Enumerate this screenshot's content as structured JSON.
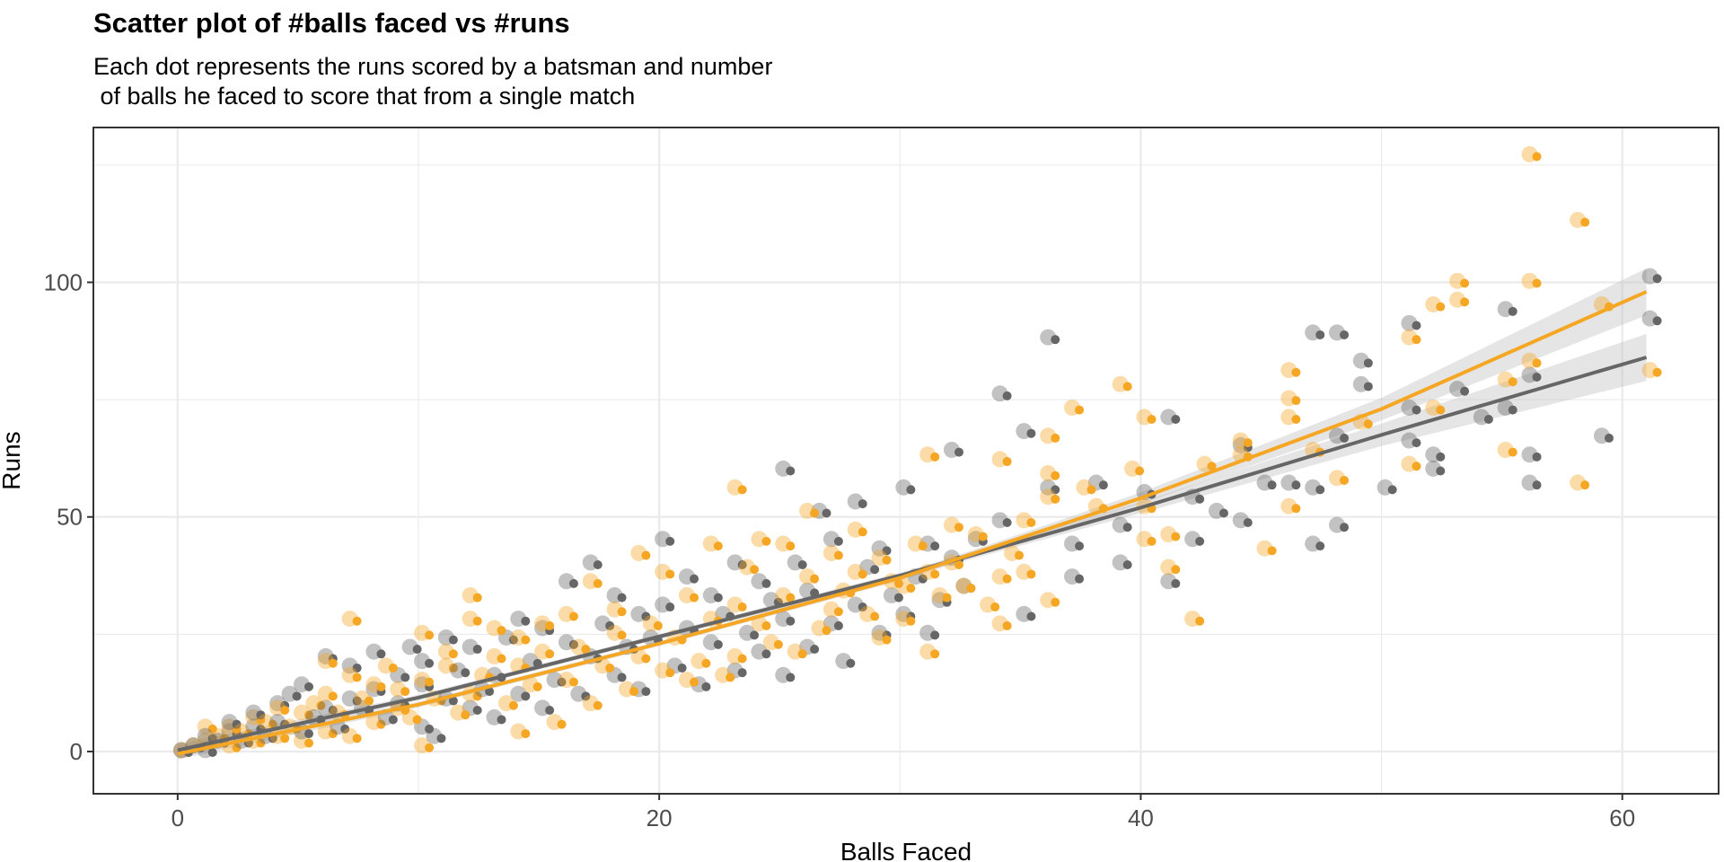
{
  "chart_data": {
    "type": "scatter",
    "title": "Scatter plot of #balls faced vs #runs",
    "subtitle": "Each dot represents the runs scored by a batsman and number\n of balls he faced to score that from a single match",
    "xlabel": "Balls Faced",
    "ylabel": "Runs",
    "xlim": [
      -3.5,
      64
    ],
    "ylim": [
      -9,
      133
    ],
    "x_ticks": [
      0,
      20,
      40,
      60
    ],
    "x_tick_labels": [
      "0",
      "20",
      "40",
      "60"
    ],
    "y_ticks": [
      0,
      50,
      100
    ],
    "y_tick_labels": [
      "0",
      "50",
      "100"
    ],
    "grid": true,
    "legend": "none",
    "colors": {
      "orange": "#F5A623",
      "gray": "#666666",
      "band": "#BEBEBE",
      "grid": "#EBEBEB",
      "frame": "#333333"
    },
    "series": [
      {
        "color_key": "orange",
        "points": [
          [
            0,
            0
          ],
          [
            0.5,
            1
          ],
          [
            1,
            2
          ],
          [
            1,
            5
          ],
          [
            1.5,
            3
          ],
          [
            2,
            1
          ],
          [
            2,
            5
          ],
          [
            2.5,
            4
          ],
          [
            3,
            2
          ],
          [
            3,
            7
          ],
          [
            3.5,
            6
          ],
          [
            4,
            3
          ],
          [
            4,
            9
          ],
          [
            4.5,
            5
          ],
          [
            5,
            2
          ],
          [
            5,
            8
          ],
          [
            5.5,
            10
          ],
          [
            6,
            4
          ],
          [
            6,
            12
          ],
          [
            6,
            19
          ],
          [
            6.5,
            8
          ],
          [
            7,
            3
          ],
          [
            7,
            16
          ],
          [
            7,
            28
          ],
          [
            7.5,
            11
          ],
          [
            8,
            6
          ],
          [
            8,
            14
          ],
          [
            8.5,
            18
          ],
          [
            9,
            9
          ],
          [
            9,
            13
          ],
          [
            9.5,
            7
          ],
          [
            10,
            1
          ],
          [
            10,
            15
          ],
          [
            10,
            25
          ],
          [
            10.5,
            11
          ],
          [
            11,
            18
          ],
          [
            11,
            21
          ],
          [
            11.5,
            8
          ],
          [
            12,
            12
          ],
          [
            12,
            28
          ],
          [
            12,
            33
          ],
          [
            12.5,
            16
          ],
          [
            13,
            20
          ],
          [
            13,
            26
          ],
          [
            13.5,
            10
          ],
          [
            14,
            4
          ],
          [
            14,
            18
          ],
          [
            14,
            24
          ],
          [
            14.5,
            14
          ],
          [
            15,
            21
          ],
          [
            15,
            27
          ],
          [
            15.5,
            6
          ],
          [
            16,
            15
          ],
          [
            16,
            29
          ],
          [
            16.5,
            22
          ],
          [
            17,
            10
          ],
          [
            17,
            36
          ],
          [
            17.5,
            18
          ],
          [
            18,
            25
          ],
          [
            18,
            30
          ],
          [
            18.5,
            13
          ],
          [
            19,
            42
          ],
          [
            19,
            20
          ],
          [
            19.5,
            27
          ],
          [
            20,
            17
          ],
          [
            20,
            38
          ],
          [
            20.5,
            24
          ],
          [
            21,
            15
          ],
          [
            21,
            33
          ],
          [
            21.5,
            19
          ],
          [
            22,
            28
          ],
          [
            22,
            44
          ],
          [
            22.5,
            16
          ],
          [
            23,
            20
          ],
          [
            23,
            31
          ],
          [
            23,
            56
          ],
          [
            23.5,
            39
          ],
          [
            24,
            27
          ],
          [
            24,
            45
          ],
          [
            24.5,
            23
          ],
          [
            25,
            33
          ],
          [
            25,
            44
          ],
          [
            25.5,
            21
          ],
          [
            26,
            37
          ],
          [
            26,
            51
          ],
          [
            26.5,
            26
          ],
          [
            27,
            42
          ],
          [
            27,
            30
          ],
          [
            27.5,
            34
          ],
          [
            28,
            38
          ],
          [
            28,
            47
          ],
          [
            28.5,
            29
          ],
          [
            29,
            24
          ],
          [
            29,
            41
          ],
          [
            29.5,
            36
          ],
          [
            30,
            28
          ],
          [
            30,
            35
          ],
          [
            30.5,
            44
          ],
          [
            31,
            21
          ],
          [
            31,
            38
          ],
          [
            31,
            63
          ],
          [
            31.5,
            33
          ],
          [
            32,
            40
          ],
          [
            32,
            48
          ],
          [
            32.5,
            35
          ],
          [
            33,
            46
          ],
          [
            33.5,
            31
          ],
          [
            34,
            37
          ],
          [
            34,
            27
          ],
          [
            34,
            62
          ],
          [
            34.5,
            42
          ],
          [
            35,
            49
          ],
          [
            35,
            38
          ],
          [
            36,
            32
          ],
          [
            36,
            54
          ],
          [
            36,
            67
          ],
          [
            36,
            59
          ],
          [
            37,
            73
          ],
          [
            37.5,
            56
          ],
          [
            38,
            52
          ],
          [
            39,
            78
          ],
          [
            39.5,
            60
          ],
          [
            40,
            71
          ],
          [
            40,
            45
          ],
          [
            40,
            52
          ],
          [
            41,
            46
          ],
          [
            41,
            39
          ],
          [
            42,
            28
          ],
          [
            42.5,
            61
          ],
          [
            44,
            66
          ],
          [
            44,
            63
          ],
          [
            45,
            43
          ],
          [
            46,
            81
          ],
          [
            46,
            75
          ],
          [
            46,
            71
          ],
          [
            46,
            52
          ],
          [
            47,
            64
          ],
          [
            48,
            58
          ],
          [
            49,
            70
          ],
          [
            51,
            88
          ],
          [
            51,
            61
          ],
          [
            52,
            95
          ],
          [
            52,
            73
          ],
          [
            53,
            100
          ],
          [
            53,
            96
          ],
          [
            55,
            79
          ],
          [
            55,
            64
          ],
          [
            56,
            127
          ],
          [
            56,
            100
          ],
          [
            56,
            83
          ],
          [
            58,
            113
          ],
          [
            58,
            57
          ],
          [
            59,
            95
          ],
          [
            61,
            81
          ]
        ]
      },
      {
        "color_key": "gray",
        "points": [
          [
            0,
            0
          ],
          [
            0.5,
            1
          ],
          [
            1,
            0
          ],
          [
            1,
            3
          ],
          [
            1.5,
            2
          ],
          [
            2,
            4
          ],
          [
            2,
            6
          ],
          [
            2.5,
            2
          ],
          [
            3,
            5
          ],
          [
            3,
            8
          ],
          [
            3.5,
            3
          ],
          [
            4,
            10
          ],
          [
            4,
            6
          ],
          [
            4.5,
            12
          ],
          [
            5,
            4
          ],
          [
            5,
            14
          ],
          [
            5.5,
            7
          ],
          [
            6,
            9
          ],
          [
            6,
            20
          ],
          [
            6.5,
            5
          ],
          [
            7,
            11
          ],
          [
            7,
            18
          ],
          [
            7.5,
            9
          ],
          [
            8,
            13
          ],
          [
            8,
            21
          ],
          [
            8.5,
            7
          ],
          [
            9,
            16
          ],
          [
            9,
            10
          ],
          [
            9.5,
            22
          ],
          [
            10,
            5
          ],
          [
            10,
            14
          ],
          [
            10,
            19
          ],
          [
            10.5,
            3
          ],
          [
            11,
            24
          ],
          [
            11,
            11
          ],
          [
            11.5,
            17
          ],
          [
            12,
            9
          ],
          [
            12,
            22
          ],
          [
            12.5,
            13
          ],
          [
            13,
            16
          ],
          [
            13,
            7
          ],
          [
            13.5,
            24
          ],
          [
            14,
            12
          ],
          [
            14,
            28
          ],
          [
            14.5,
            19
          ],
          [
            15,
            9
          ],
          [
            15,
            26
          ],
          [
            15.5,
            15
          ],
          [
            16,
            23
          ],
          [
            16,
            36
          ],
          [
            16.5,
            12
          ],
          [
            17,
            20
          ],
          [
            17,
            40
          ],
          [
            17.5,
            27
          ],
          [
            18,
            16
          ],
          [
            18,
            33
          ],
          [
            18.5,
            22
          ],
          [
            19,
            13
          ],
          [
            19,
            29
          ],
          [
            19.5,
            24
          ],
          [
            20,
            31
          ],
          [
            20,
            45
          ],
          [
            20.5,
            18
          ],
          [
            21,
            26
          ],
          [
            21,
            37
          ],
          [
            21.5,
            14
          ],
          [
            22,
            33
          ],
          [
            22,
            23
          ],
          [
            22.5,
            29
          ],
          [
            23,
            17
          ],
          [
            23,
            40
          ],
          [
            23.5,
            25
          ],
          [
            24,
            21
          ],
          [
            24,
            36
          ],
          [
            24.5,
            32
          ],
          [
            25,
            16
          ],
          [
            25,
            28
          ],
          [
            25,
            60
          ],
          [
            25.5,
            40
          ],
          [
            26,
            22
          ],
          [
            26,
            34
          ],
          [
            26.5,
            51
          ],
          [
            27,
            27
          ],
          [
            27,
            45
          ],
          [
            27.5,
            19
          ],
          [
            28,
            31
          ],
          [
            28,
            53
          ],
          [
            28.5,
            39
          ],
          [
            29,
            25
          ],
          [
            29,
            43
          ],
          [
            29.5,
            33
          ],
          [
            30,
            29
          ],
          [
            30,
            56
          ],
          [
            30.5,
            37
          ],
          [
            31,
            25
          ],
          [
            31,
            44
          ],
          [
            31.5,
            32
          ],
          [
            32,
            41
          ],
          [
            32,
            64
          ],
          [
            32.5,
            35
          ],
          [
            33,
            45
          ],
          [
            34,
            49
          ],
          [
            34,
            76
          ],
          [
            35,
            68
          ],
          [
            35,
            29
          ],
          [
            36,
            88
          ],
          [
            36,
            56
          ],
          [
            37,
            44
          ],
          [
            37,
            37
          ],
          [
            38,
            57
          ],
          [
            39,
            40
          ],
          [
            39,
            48
          ],
          [
            40,
            55
          ],
          [
            41,
            71
          ],
          [
            41,
            36
          ],
          [
            42,
            45
          ],
          [
            42,
            54
          ],
          [
            43,
            51
          ],
          [
            44,
            65
          ],
          [
            44,
            49
          ],
          [
            45,
            57
          ],
          [
            46,
            57
          ],
          [
            47,
            89
          ],
          [
            47,
            44
          ],
          [
            47,
            56
          ],
          [
            48,
            89
          ],
          [
            48,
            67
          ],
          [
            48,
            48
          ],
          [
            49,
            83
          ],
          [
            49,
            78
          ],
          [
            50,
            56
          ],
          [
            51,
            91
          ],
          [
            51,
            73
          ],
          [
            51,
            66
          ],
          [
            52,
            63
          ],
          [
            52,
            60
          ],
          [
            53,
            77
          ],
          [
            54,
            71
          ],
          [
            55,
            94
          ],
          [
            55,
            73
          ],
          [
            56,
            80
          ],
          [
            56,
            63
          ],
          [
            56,
            57
          ],
          [
            59,
            67
          ],
          [
            61,
            101
          ],
          [
            61,
            92
          ]
        ]
      }
    ],
    "fit_lines": [
      {
        "color_key": "gray",
        "points": [
          [
            0,
            0.3
          ],
          [
            10,
            11.5
          ],
          [
            20,
            24.5
          ],
          [
            30,
            37.5
          ],
          [
            40,
            52
          ],
          [
            50,
            67.5
          ],
          [
            61,
            84
          ]
        ],
        "band_halfwidth": [
          1.2,
          0.6,
          0.5,
          0.6,
          1.2,
          2.4,
          5
        ]
      },
      {
        "color_key": "orange",
        "points": [
          [
            0,
            -0.5
          ],
          [
            10,
            10
          ],
          [
            20,
            23
          ],
          [
            30,
            37
          ],
          [
            40,
            54
          ],
          [
            50,
            73
          ],
          [
            61,
            98
          ]
        ],
        "band_halfwidth": [
          1.2,
          0.6,
          0.5,
          0.6,
          1.2,
          2.4,
          5
        ]
      }
    ]
  }
}
